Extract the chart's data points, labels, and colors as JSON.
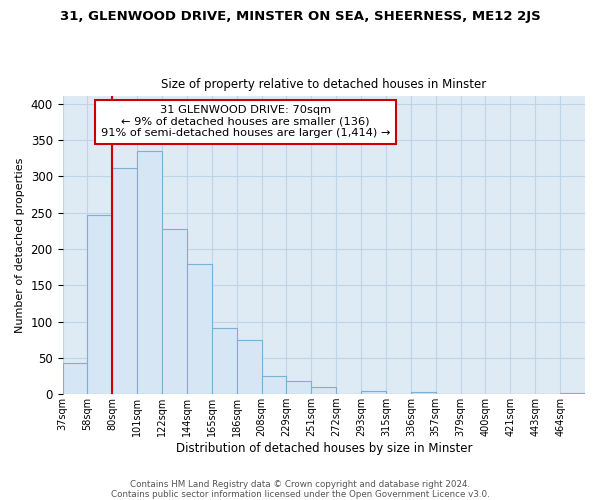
{
  "title_line1": "31, GLENWOOD DRIVE, MINSTER ON SEA, SHEERNESS, ME12 2JS",
  "title_line2": "Size of property relative to detached houses in Minster",
  "xlabel": "Distribution of detached houses by size in Minster",
  "ylabel": "Number of detached properties",
  "bar_color": "#d6e6f5",
  "bar_edge_color": "#7ab0d4",
  "plot_bg_color": "#deeaf4",
  "fig_bg_color": "#ffffff",
  "categories": [
    "37sqm",
    "58sqm",
    "80sqm",
    "101sqm",
    "122sqm",
    "144sqm",
    "165sqm",
    "186sqm",
    "208sqm",
    "229sqm",
    "251sqm",
    "272sqm",
    "293sqm",
    "315sqm",
    "336sqm",
    "357sqm",
    "379sqm",
    "400sqm",
    "421sqm",
    "443sqm",
    "464sqm"
  ],
  "values": [
    43,
    246,
    312,
    335,
    228,
    179,
    91,
    75,
    25,
    18,
    10,
    0,
    5,
    0,
    3,
    0,
    0,
    0,
    0,
    0,
    2
  ],
  "ylim": [
    0,
    410
  ],
  "yticks": [
    0,
    50,
    100,
    150,
    200,
    250,
    300,
    350,
    400
  ],
  "vline_x": 2,
  "vline_color": "#cc0000",
  "annotation_text": "31 GLENWOOD DRIVE: 70sqm\n← 9% of detached houses are smaller (136)\n91% of semi-detached houses are larger (1,414) →",
  "annotation_box_color": "#ffffff",
  "annotation_box_edge": "#cc0000",
  "footer_line1": "Contains HM Land Registry data © Crown copyright and database right 2024.",
  "footer_line2": "Contains public sector information licensed under the Open Government Licence v3.0.",
  "grid_color": "#c0d4e8"
}
